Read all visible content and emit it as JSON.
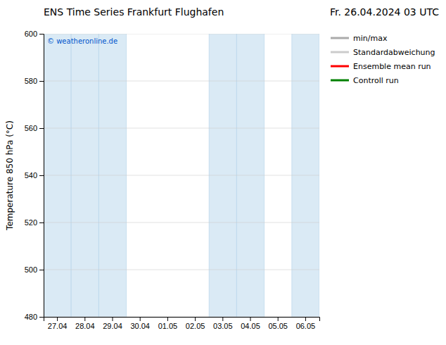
{
  "chart_data": {
    "type": "line",
    "title": "ENS Time Series Frankfurt Flughafen",
    "subtitle": "Fr. 26.04.2024 03 UTC",
    "y_label": "Temperature 850 hPa (°C)",
    "categories": [
      "27.04",
      "28.04",
      "29.04",
      "30.04",
      "01.05",
      "02.05",
      "03.05",
      "04.05",
      "05.05",
      "06.05"
    ],
    "series": [
      {
        "name": "min/max",
        "color": "#aaaaaa"
      },
      {
        "name": "Standardabweichung",
        "color": "#cccccc"
      },
      {
        "name": "Ensemble mean run",
        "color": "#ff0000"
      },
      {
        "name": "Controll run",
        "color": "#008000"
      }
    ],
    "shaded_columns": [
      0,
      1,
      2,
      6,
      7,
      9
    ],
    "annotations": [
      {
        "text": "© weatheronline.de",
        "color": "#0055cc"
      }
    ],
    "ylim": [
      480,
      600
    ],
    "yticks": [
      480,
      500,
      520,
      540,
      560,
      580,
      600
    ],
    "grid": true,
    "legend": "right"
  }
}
